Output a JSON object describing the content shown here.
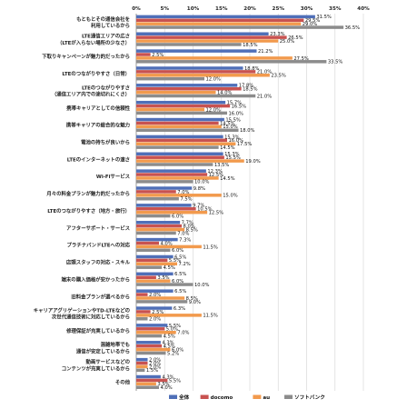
{
  "chart_data": {
    "type": "bar",
    "orientation": "horizontal",
    "xlim": [
      0,
      40
    ],
    "x_ticks": [
      "0%",
      "5%",
      "10%",
      "15%",
      "20%",
      "25%",
      "30%",
      "35%",
      "40%"
    ],
    "grid": true,
    "legend_position": "bottom",
    "colors": {
      "全体": "#4f6fb8",
      "docomo": "#c85250",
      "au": "#f29a4d",
      "ソフトバンク": "#8c8c8c"
    },
    "categories": [
      [
        "もともとその通信会社を",
        "利用しているから"
      ],
      [
        "LTE通信エリアの広さ",
        "（LTEが入らない場所の少なさ）"
      ],
      [
        "下取りキャンペーンが魅力的だったから"
      ],
      [
        "LTEのつながりやすさ（日常）"
      ],
      [
        "LTEのつながりやすさ",
        "（通信エリア内での途切れにくさ）"
      ],
      [
        "携帯キャリアとしての信頼性"
      ],
      [
        "携帯キャリアの総合的な魅力"
      ],
      [
        "電池の持ちが良いから"
      ],
      [
        "LTEのインターネットの速さ"
      ],
      [
        "Wi-Fiサービス"
      ],
      [
        "月々の料金プランが魅力的だったから"
      ],
      [
        "LTEのつながりやすさ（地方・旅行）"
      ],
      [
        "アフターサポート・サービス"
      ],
      [
        "プラチナバンドLTEへの対応"
      ],
      [
        "店頭スタッフの対応・スキル"
      ],
      [
        "端末の購入価格が安かったから"
      ],
      [
        "旧料金プランが選べるから"
      ],
      [
        "キャリアアグリゲーションやTD-LTEなどの",
        "次世代通信技術に対応しているから"
      ],
      [
        "修理保証が充実しているから"
      ],
      [
        "混雑地帯でも",
        "通信が安定しているから"
      ],
      [
        "動画サービスなどの",
        "コンテンツが充実しているから"
      ],
      [
        "その他"
      ]
    ],
    "series": [
      {
        "name": "全体",
        "values": [
          31.5,
          23.3,
          21.2,
          18.8,
          17.8,
          15.7,
          15.5,
          15.3,
          15.3,
          12.3,
          9.8,
          9.7,
          7.7,
          7.3,
          6.5,
          6.5,
          6.5,
          6.3,
          5.5,
          4.3,
          2.0,
          4.3
        ]
      },
      {
        "name": "docomo",
        "values": [
          29.5,
          26.5,
          2.5,
          21.0,
          18.5,
          16.5,
          14.5,
          16.0,
          15.5,
          12.5,
          7.0,
          10.5,
          8.0,
          4.0,
          5.5,
          3.5,
          2.0,
          2.5,
          5.0,
          4.5,
          2.0,
          5.5
        ]
      },
      {
        "name": "au",
        "values": [
          29.0,
          25.0,
          27.5,
          23.5,
          14.0,
          12.0,
          15.0,
          17.5,
          19.0,
          14.5,
          15.0,
          12.5,
          8.5,
          11.5,
          7.2,
          6.0,
          8.5,
          11.5,
          7.0,
          6.0,
          2.0,
          3.5
        ]
      },
      {
        "name": "ソフトバンク",
        "values": [
          36.5,
          18.5,
          33.5,
          12.0,
          21.0,
          16.0,
          18.0,
          14.5,
          13.5,
          10.0,
          7.5,
          6.0,
          7.0,
          6.0,
          4.5,
          10.0,
          9.0,
          2.0,
          4.5,
          5.2,
          1.5,
          4.0
        ]
      }
    ],
    "value_labels": [
      [
        "31.5%",
        "29.5%",
        "29.0%",
        "36.5%"
      ],
      [
        "23.3%",
        "26.5%",
        "25.0%",
        "18.5%"
      ],
      [
        "21.2%",
        "2.5%",
        "27.5%",
        "33.5%"
      ],
      [
        "18.8%",
        "21.0%",
        "23.5%",
        "12.0%"
      ],
      [
        "17.8%",
        "18.5%",
        "14.0%",
        "21.0%"
      ],
      [
        "15.7%",
        "16.5%",
        "12.0%",
        "16.0%"
      ],
      [
        "15.5%",
        "14.5%",
        "15.0%",
        "18.0%"
      ],
      [
        "15.3%",
        "16.0%",
        "17.5%",
        "14.5%"
      ],
      [
        "15.3%",
        "15.5%",
        "19.0%",
        "13.5%"
      ],
      [
        "12.3%",
        "12.5%",
        "14.5%",
        "10.0%"
      ],
      [
        "9.8%",
        "7.0%",
        "15.0%",
        "7.5%"
      ],
      [
        "9.7%",
        "10.5%",
        "12.5%",
        "6.0%"
      ],
      [
        "7.7%",
        "8.0%",
        "8.5%",
        "7.0%"
      ],
      [
        "7.3%",
        "4.0%",
        "11.5%",
        "6.0%"
      ],
      [
        "6.5%",
        "5.5%",
        "7.2%",
        "4.5%"
      ],
      [
        "6.5%",
        "3.5%",
        "6.0%",
        "10.0%"
      ],
      [
        "6.5%",
        "2.0%",
        "8.5%",
        "9.0%"
      ],
      [
        "6.3%",
        "2.5%",
        "11.5%",
        "2.0%"
      ],
      [
        "5.5%",
        "5.0%",
        "7.0%",
        "4.5%"
      ],
      [
        "4.3%",
        "4.5%",
        "6.0%",
        "5.2%"
      ],
      [
        "2.0%",
        "2.0%",
        "2.0%",
        "1.5%"
      ],
      [
        "4.3%",
        "5.5%",
        "3.5%",
        "4.0%"
      ]
    ]
  }
}
